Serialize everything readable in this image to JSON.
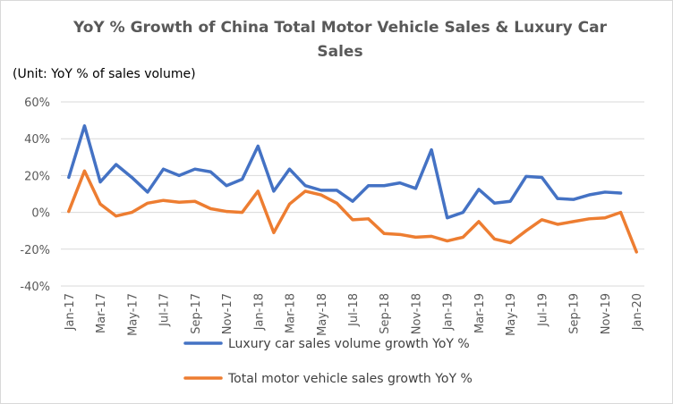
{
  "chart_data": {
    "type": "line",
    "title": "YoY % Growth of China Total Motor Vehicle Sales & Luxury Car Sales",
    "unit_note": "(Unit: YoY % of sales volume)",
    "ylim": [
      -40,
      60
    ],
    "yticks": [
      -40,
      -20,
      0,
      20,
      40,
      60
    ],
    "ytick_suffix": "%",
    "grid": "horizontal",
    "legend_position": "bottom",
    "categories": [
      "Jan-17",
      "Feb-17",
      "Mar-17",
      "Apr-17",
      "May-17",
      "Jun-17",
      "Jul-17",
      "Aug-17",
      "Sep-17",
      "Oct-17",
      "Nov-17",
      "Dec-17",
      "Jan-18",
      "Feb-18",
      "Mar-18",
      "Apr-18",
      "May-18",
      "Jun-18",
      "Jul-18",
      "Aug-18",
      "Sep-18",
      "Oct-18",
      "Nov-18",
      "Dec-18",
      "Jan-19",
      "Feb-19",
      "Mar-19",
      "Apr-19",
      "May-19",
      "Jun-19",
      "Jul-19",
      "Aug-19",
      "Sep-19",
      "Oct-19",
      "Nov-19",
      "Dec-19",
      "Jan-20"
    ],
    "visible_tick_labels": [
      "Jan-17",
      "Mar-17",
      "May-17",
      "Jul-17",
      "Sep-17",
      "Nov-17",
      "Jan-18",
      "Mar-18",
      "May-18",
      "Jul-18",
      "Sep-18",
      "Nov-18",
      "Jan-19",
      "Mar-19",
      "May-19",
      "Jul-19",
      "Sep-19",
      "Nov-19",
      "Jan-20"
    ],
    "series": [
      {
        "name": "Luxury car sales volume growth YoY %",
        "color": "#4472c4",
        "values": [
          19,
          47,
          16.5,
          26,
          19,
          11,
          23.5,
          20,
          23.5,
          22,
          14.5,
          18,
          36,
          11.5,
          23.5,
          14.5,
          12,
          12,
          6,
          14.5,
          14.5,
          16,
          13,
          34,
          -3,
          0,
          12.5,
          5,
          6,
          19.5,
          19,
          7.5,
          7,
          9.5,
          11,
          10.5,
          null
        ]
      },
      {
        "name": "Total motor vehicle sales growth YoY %",
        "color": "#ed7d31",
        "values": [
          0.5,
          22.5,
          4.5,
          -2,
          0,
          5,
          6.5,
          5.5,
          6,
          2,
          0.5,
          0,
          11.5,
          -11,
          4.5,
          11.5,
          9.5,
          5,
          -4,
          -3.5,
          -11.5,
          -12,
          -13.5,
          -13,
          -15.5,
          -13.5,
          -5,
          -14.5,
          -16.5,
          -10,
          -4,
          -6.5,
          -5,
          -3.5,
          -3,
          0,
          -21.5
        ]
      }
    ]
  }
}
